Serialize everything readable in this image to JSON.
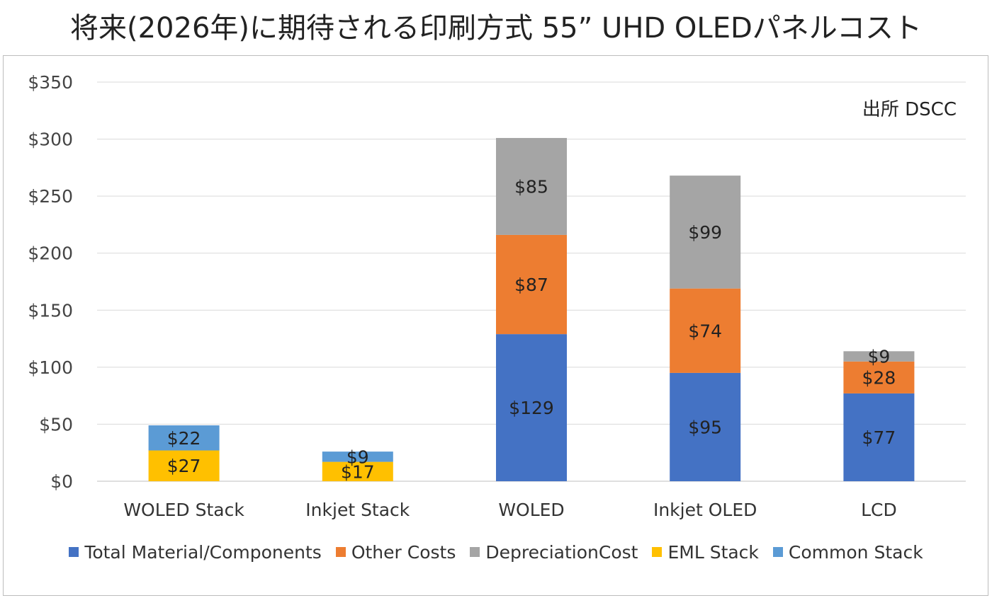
{
  "chart_data": {
    "type": "bar",
    "stacked": true,
    "title": "将来(2026年)に期待される印刷方式 55” UHD OLEDパネルコスト",
    "annotation": "出所 DSCC",
    "categories": [
      "WOLED Stack",
      "Inkjet Stack",
      "WOLED",
      "Inkjet OLED",
      "LCD"
    ],
    "ylim": [
      0,
      350
    ],
    "yticks": [
      0,
      50,
      100,
      150,
      200,
      250,
      300,
      350
    ],
    "ytick_labels": [
      "$0",
      "$50",
      "$100",
      "$150",
      "$200",
      "$250",
      "$300",
      "$350"
    ],
    "grid": true,
    "legend_position": "bottom",
    "series": [
      {
        "name": "Total Material/Components",
        "color": "#4472c4",
        "values": [
          null,
          null,
          129,
          95,
          77
        ],
        "labels": [
          "",
          "",
          "$129",
          "$95",
          "$77"
        ]
      },
      {
        "name": "Other Costs",
        "color": "#ed7d31",
        "values": [
          null,
          null,
          87,
          74,
          28
        ],
        "labels": [
          "",
          "",
          "$87",
          "$74",
          "$28"
        ]
      },
      {
        "name": "DepreciationCost",
        "color": "#a5a5a5",
        "values": [
          null,
          null,
          85,
          99,
          9
        ],
        "labels": [
          "",
          "",
          "$85",
          "$99",
          "$9"
        ]
      },
      {
        "name": "EML Stack",
        "color": "#ffc000",
        "values": [
          27,
          17,
          null,
          null,
          null
        ],
        "labels": [
          "$27",
          "$17",
          "",
          "",
          ""
        ]
      },
      {
        "name": "Common Stack",
        "color": "#5b9bd5",
        "values": [
          22,
          9,
          null,
          null,
          null
        ],
        "labels": [
          "$22",
          "$9",
          "",
          "",
          ""
        ]
      }
    ]
  }
}
